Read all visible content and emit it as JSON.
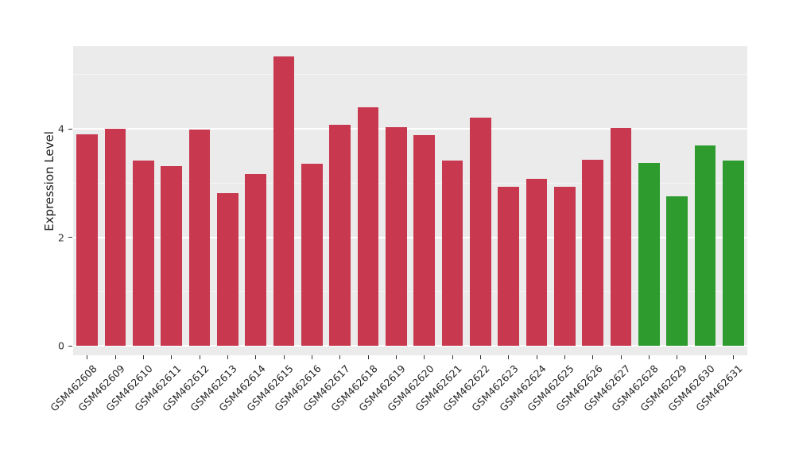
{
  "chart_data": {
    "type": "bar",
    "title": "",
    "xlabel": "",
    "ylabel": "Expression Level",
    "categories": [
      "GSM462608",
      "GSM462609",
      "GSM462610",
      "GSM462611",
      "GSM462612",
      "GSM462613",
      "GSM462614",
      "GSM462615",
      "GSM462616",
      "GSM462617",
      "GSM462618",
      "GSM462619",
      "GSM462620",
      "GSM462621",
      "GSM462622",
      "GSM462623",
      "GSM462624",
      "GSM462625",
      "GSM462626",
      "GSM462627",
      "GSM462628",
      "GSM462629",
      "GSM462630",
      "GSM462631"
    ],
    "values": [
      3.9,
      4.0,
      3.41,
      3.31,
      3.98,
      2.82,
      3.17,
      5.33,
      3.36,
      4.07,
      4.4,
      4.03,
      3.89,
      3.41,
      4.21,
      2.93,
      3.07,
      2.93,
      3.43,
      4.01,
      3.37,
      2.76,
      3.69,
      3.41
    ],
    "groups": [
      {
        "color": "#C8384F",
        "from": 0,
        "to": 19
      },
      {
        "color": "#2E9B2E",
        "from": 20,
        "to": 23
      }
    ],
    "ylim": [
      0,
      5.52
    ],
    "yticks": [
      0,
      2,
      4
    ],
    "yticks_minor": [
      1,
      3,
      5
    ],
    "grid": "on",
    "legend": "none",
    "panel_bg": "#EBEBEB",
    "grid_color": "#FFFFFF"
  }
}
